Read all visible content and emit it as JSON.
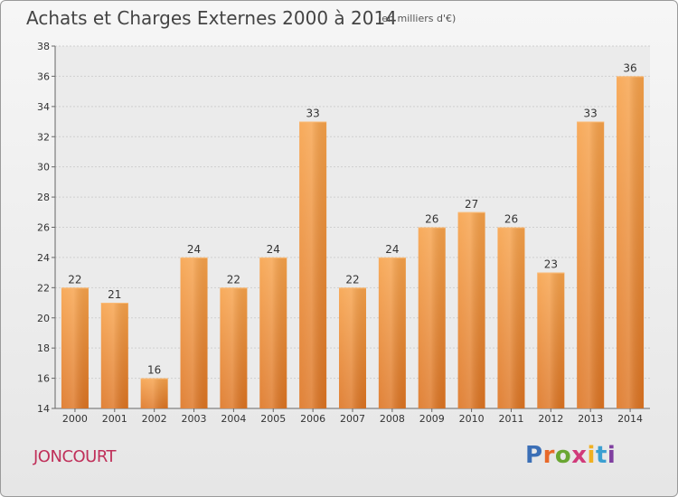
{
  "header": {
    "title": "Achats et Charges Externes 2000 à 2014",
    "unit": "(en milliers d'€)"
  },
  "footer": {
    "commune": "JONCOURT",
    "brand": "Proxiti"
  },
  "colors": {
    "bar_light": "#f7a24a",
    "bar_dark": "#dd7422",
    "commune": "#c0305a",
    "logo_letters": [
      "#3b6fb6",
      "#e8692a",
      "#6aa632",
      "#d13a7a",
      "#f0b021",
      "#3b9fd1",
      "#7f3fa0"
    ]
  },
  "chart_data": {
    "type": "bar",
    "title": "Achats et Charges Externes 2000 à 2014",
    "subtitle": "(en milliers d'€)",
    "xlabel": "",
    "ylabel": "",
    "categories": [
      "2000",
      "2001",
      "2002",
      "2003",
      "2004",
      "2005",
      "2006",
      "2007",
      "2008",
      "2009",
      "2010",
      "2011",
      "2012",
      "2013",
      "2014"
    ],
    "values": [
      22,
      21,
      16,
      24,
      22,
      24,
      33,
      22,
      24,
      26,
      27,
      26,
      23,
      33,
      36
    ],
    "ylim": [
      14,
      38
    ],
    "yticks": [
      14,
      16,
      18,
      20,
      22,
      24,
      26,
      28,
      30,
      32,
      34,
      36,
      38
    ],
    "grid": true,
    "legend": "none"
  }
}
